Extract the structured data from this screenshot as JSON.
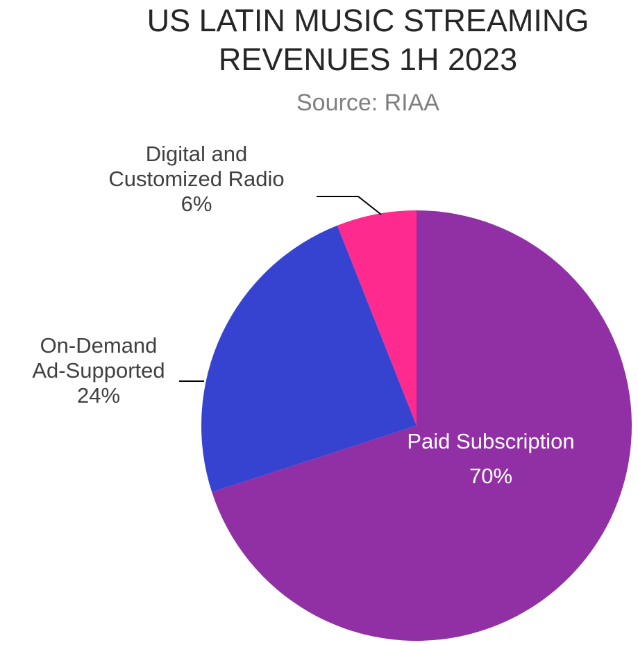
{
  "chart_data": {
    "type": "pie",
    "title": "US LATIN MUSIC STREAMING REVENUES 1H 2023",
    "title_lines": [
      "US LATIN MUSIC STREAMING",
      "REVENUES 1H 2023"
    ],
    "subtitle": "Source: RIAA",
    "slices": [
      {
        "name": "Paid Subscription",
        "value": 70,
        "label_lines": [
          "Paid Subscription",
          "70%"
        ],
        "color": "#9130A5"
      },
      {
        "name": "On-Demand Ad-Supported",
        "value": 24,
        "label_lines": [
          "On-Demand",
          "Ad-Supported",
          "24%"
        ],
        "color": "#3643D0"
      },
      {
        "name": "Digital and Customized Radio",
        "value": 6,
        "label_lines": [
          "Digital and",
          "Customized Radio",
          "6%"
        ],
        "color": "#FF2A8E"
      }
    ],
    "start_angle": "12 o'clock",
    "direction": "clockwise"
  }
}
